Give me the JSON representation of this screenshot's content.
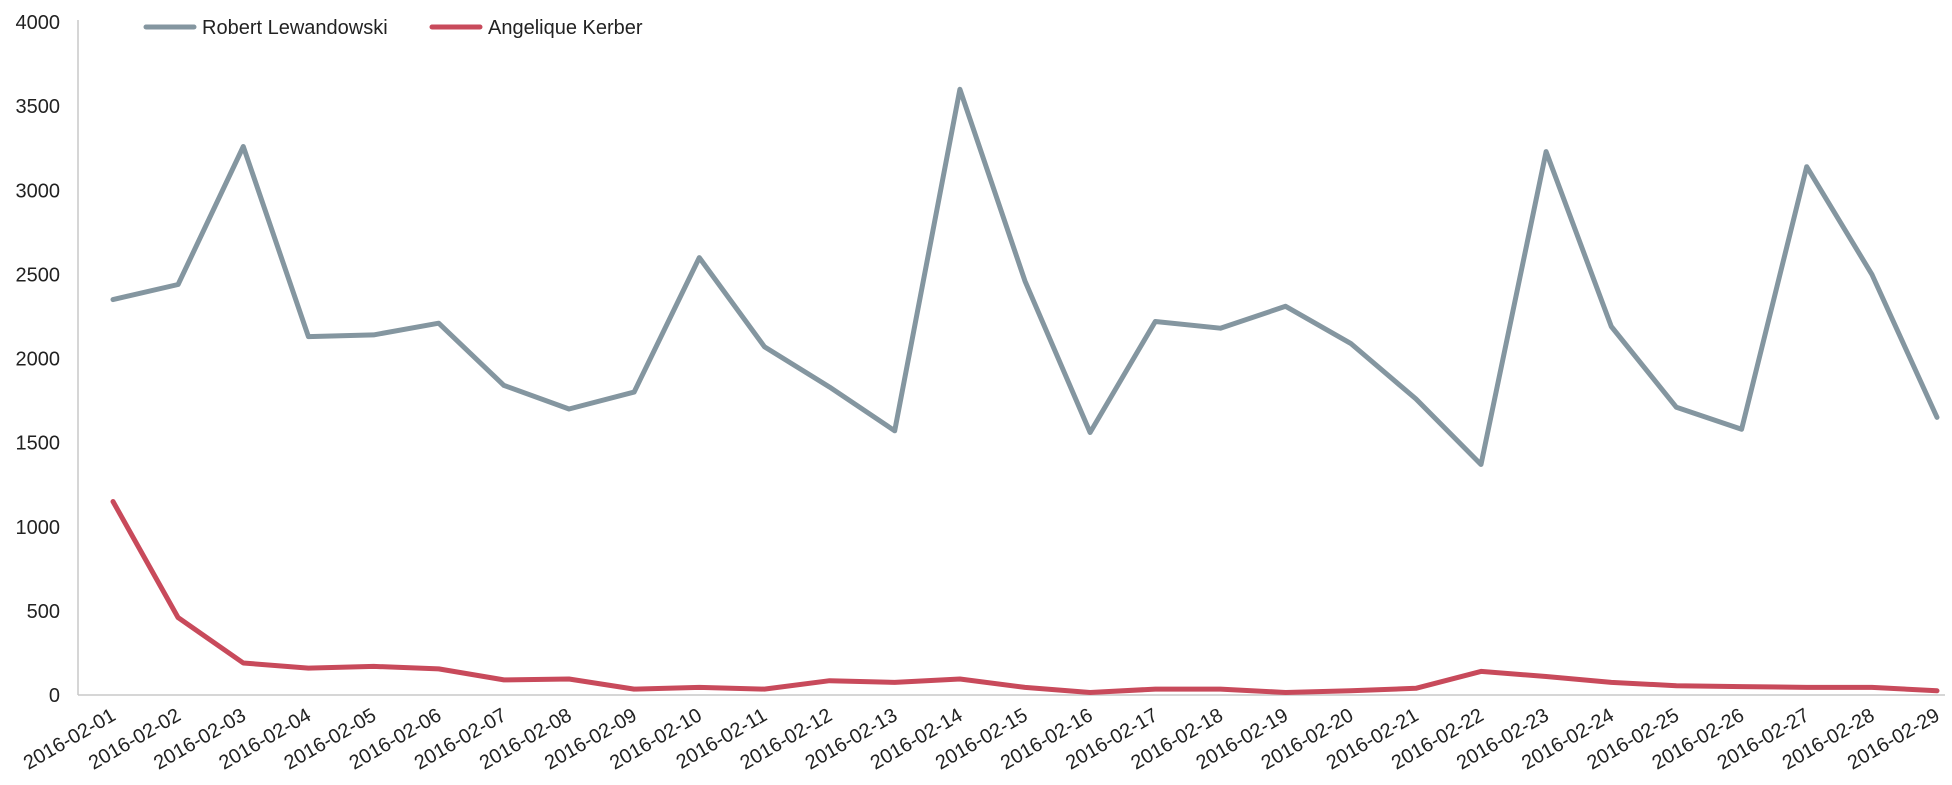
{
  "chart_data": {
    "type": "line",
    "title": "",
    "xlabel": "",
    "ylabel": "",
    "ylim": [
      0,
      4000
    ],
    "yticks": [
      0,
      500,
      1000,
      1500,
      2000,
      2500,
      3000,
      3500,
      4000
    ],
    "grid": false,
    "legend_position": "top-left",
    "x": [
      "2016-02-01",
      "2016-02-02",
      "2016-02-03",
      "2016-02-04",
      "2016-02-05",
      "2016-02-06",
      "2016-02-07",
      "2016-02-08",
      "2016-02-09",
      "2016-02-10",
      "2016-02-11",
      "2016-02-12",
      "2016-02-13",
      "2016-02-14",
      "2016-02-15",
      "2016-02-16",
      "2016-02-17",
      "2016-02-18",
      "2016-02-19",
      "2016-02-20",
      "2016-02-21",
      "2016-02-22",
      "2016-02-23",
      "2016-02-24",
      "2016-02-25",
      "2016-02-26",
      "2016-02-27",
      "2016-02-28",
      "2016-02-29"
    ],
    "series": [
      {
        "name": "Robert Lewandowski",
        "color": "#8496a0",
        "values": [
          2350,
          2440,
          3260,
          2130,
          2140,
          2210,
          1840,
          1700,
          1800,
          2600,
          2070,
          1830,
          1570,
          3600,
          2460,
          1560,
          2220,
          2180,
          2310,
          2090,
          1760,
          1370,
          3230,
          2190,
          1710,
          1580,
          3140,
          2500,
          1650
        ]
      },
      {
        "name": "Angelique Kerber",
        "color": "#c84a5b",
        "values": [
          1150,
          460,
          190,
          160,
          170,
          155,
          90,
          95,
          35,
          45,
          35,
          85,
          75,
          95,
          45,
          15,
          35,
          35,
          15,
          25,
          40,
          140,
          110,
          75,
          55,
          50,
          45,
          45,
          25
        ]
      }
    ]
  }
}
